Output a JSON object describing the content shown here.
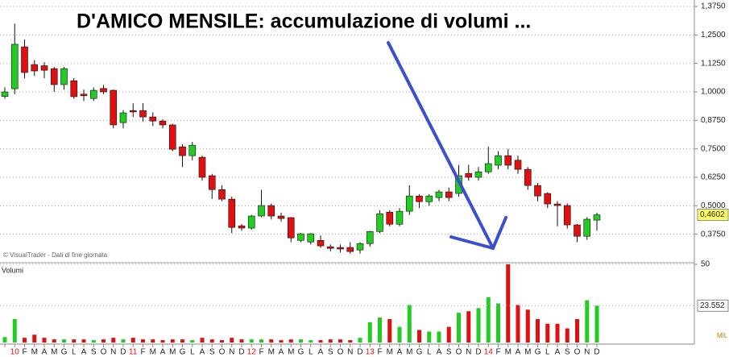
{
  "chart_data": [
    {
      "type": "candlestick",
      "title": "D'AMICO MENSILE: accumulazione di volumi ...",
      "annotation": "© VisualTrader - Dati di fine giornata",
      "categories": [
        null,
        "10",
        "F",
        "M",
        "A",
        "M",
        "G",
        "L",
        "A",
        "S",
        "O",
        "N",
        "D",
        "11",
        "F",
        "M",
        "A",
        "M",
        "G",
        "L",
        "A",
        "S",
        "O",
        "N",
        "D",
        "12",
        "F",
        "M",
        "A",
        "M",
        "G",
        "L",
        "A",
        "S",
        "O",
        "N",
        "D",
        "13",
        "F",
        "M",
        "A",
        "M",
        "G",
        "L",
        "A",
        "S",
        "O",
        "N",
        "D",
        "14",
        "F",
        "M",
        "A",
        "M",
        "G",
        "L",
        "A",
        "S",
        "O",
        "N",
        "D"
      ],
      "open": [
        0.98,
        1.014,
        1.198,
        1.12,
        1.115,
        1.102,
        1.032,
        1.049,
        0.99,
        0.971,
        1.015,
        1.007,
        0.865,
        0.918,
        0.918,
        0.89,
        0.872,
        0.855,
        0.759,
        0.72,
        0.713,
        0.632,
        0.571,
        0.529,
        0.412,
        0.402,
        0.455,
        0.501,
        0.455,
        0.448,
        0.348,
        0.341,
        0.348,
        0.32,
        0.317,
        0.317,
        0.306,
        0.334,
        0.387,
        0.472,
        0.419,
        0.476,
        0.543,
        0.518,
        0.536,
        0.561,
        0.554,
        0.642,
        0.625,
        0.649,
        0.678,
        0.72,
        0.7,
        0.66,
        0.589,
        0.554,
        0.508,
        0.501,
        0.416,
        0.366,
        0.437
      ],
      "high": [
        1.02,
        1.3,
        1.23,
        1.14,
        1.13,
        1.11,
        1.11,
        1.06,
        1.01,
        1.02,
        1.03,
        1.01,
        0.92,
        0.95,
        0.95,
        0.91,
        0.88,
        0.86,
        0.77,
        0.78,
        0.72,
        0.64,
        0.59,
        0.54,
        0.42,
        0.46,
        0.57,
        0.51,
        0.47,
        0.45,
        0.38,
        0.38,
        0.37,
        0.33,
        0.33,
        0.34,
        0.34,
        0.39,
        0.48,
        0.48,
        0.49,
        0.59,
        0.55,
        0.55,
        0.57,
        0.58,
        0.68,
        0.68,
        0.67,
        0.76,
        0.74,
        0.75,
        0.72,
        0.67,
        0.6,
        0.56,
        0.52,
        0.51,
        0.42,
        0.45,
        0.47
      ],
      "low": [
        0.97,
        0.99,
        1.06,
        1.07,
        1.06,
        1.0,
        1.01,
        0.97,
        0.96,
        0.96,
        0.99,
        0.84,
        0.84,
        0.89,
        0.87,
        0.85,
        0.84,
        0.74,
        0.67,
        0.7,
        0.61,
        0.53,
        0.52,
        0.38,
        0.39,
        0.395,
        0.45,
        0.44,
        0.43,
        0.34,
        0.34,
        0.33,
        0.315,
        0.3,
        0.295,
        0.29,
        0.29,
        0.32,
        0.38,
        0.41,
        0.41,
        0.46,
        0.49,
        0.5,
        0.52,
        0.52,
        0.54,
        0.61,
        0.61,
        0.64,
        0.66,
        0.66,
        0.64,
        0.57,
        0.52,
        0.49,
        0.41,
        0.4,
        0.34,
        0.35,
        0.39
      ],
      "close": [
        1.0,
        1.209,
        1.085,
        1.092,
        1.095,
        1.032,
        1.102,
        0.979,
        0.983,
        1.007,
        1.0,
        0.855,
        0.908,
        0.912,
        0.89,
        0.872,
        0.855,
        0.748,
        0.72,
        0.766,
        0.625,
        0.571,
        0.529,
        0.405,
        0.402,
        0.455,
        0.501,
        0.455,
        0.444,
        0.359,
        0.377,
        0.377,
        0.324,
        0.313,
        0.31,
        0.299,
        0.334,
        0.387,
        0.465,
        0.419,
        0.476,
        0.543,
        0.518,
        0.543,
        0.561,
        0.536,
        0.632,
        0.625,
        0.649,
        0.685,
        0.72,
        0.678,
        0.66,
        0.589,
        0.543,
        0.508,
        0.501,
        0.416,
        0.366,
        0.441,
        0.4602
      ],
      "close_label": "0,4602",
      "up_color": "#22cc22",
      "down_color": "#e01010",
      "ylim": [
        0.2535,
        1.4035
      ],
      "yticks": [
        {
          "value": 0.375,
          "label": "0,3750"
        },
        {
          "value": 0.5,
          "label": "0,5000"
        },
        {
          "value": 0.625,
          "label": "0,6250"
        },
        {
          "value": 0.75,
          "label": "0,7500"
        },
        {
          "value": 0.875,
          "label": "0,8750"
        },
        {
          "value": 1.0,
          "label": "1,0000"
        },
        {
          "value": 1.125,
          "label": "1,1250"
        },
        {
          "value": 1.25,
          "label": "1,2500"
        },
        {
          "value": 1.375,
          "label": "1,3750"
        }
      ],
      "grid": true
    },
    {
      "type": "bar",
      "title": "Volumi",
      "unit": "MIL",
      "values": [
        3.5,
        15,
        3,
        5,
        3,
        2,
        2,
        2,
        2,
        1.5,
        2,
        3,
        2,
        3,
        2,
        2,
        1.5,
        2,
        2,
        1.5,
        3,
        2,
        1.5,
        3,
        2,
        2,
        2,
        2,
        1.5,
        2,
        2,
        1.5,
        1.5,
        2,
        2,
        1.5,
        3,
        13,
        16,
        15,
        10,
        24,
        8,
        7,
        7,
        10,
        19,
        20,
        22,
        29,
        25,
        50,
        24,
        21,
        15,
        12,
        12,
        9,
        15,
        27,
        23.552
      ],
      "last_label": "23.552",
      "ylim": [
        0,
        50
      ],
      "yticks": [
        50
      ],
      "grid": true
    }
  ]
}
